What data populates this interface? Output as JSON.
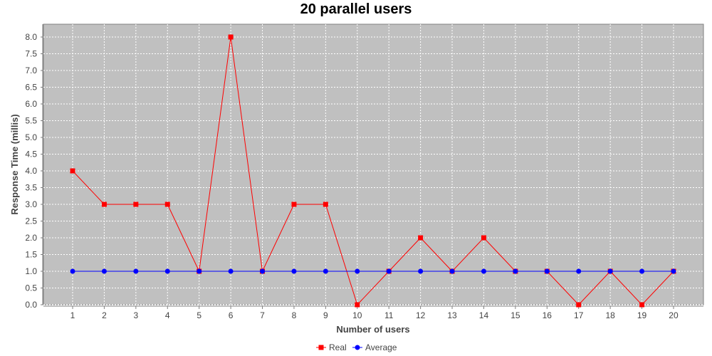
{
  "chart_data": {
    "type": "line",
    "title": "20 parallel users",
    "xlabel": "Number of users",
    "ylabel": "Response Time (millis)",
    "categories": [
      "1",
      "2",
      "3",
      "4",
      "5",
      "6",
      "7",
      "8",
      "9",
      "10",
      "11",
      "12",
      "13",
      "14",
      "15",
      "16",
      "17",
      "18",
      "19",
      "20"
    ],
    "ylim": [
      0,
      8.0
    ],
    "yticks": [
      "0.0",
      "0.5",
      "1.0",
      "1.5",
      "2.0",
      "2.5",
      "3.0",
      "3.5",
      "4.0",
      "4.5",
      "5.0",
      "5.5",
      "6.0",
      "6.5",
      "7.0",
      "7.5",
      "8.0"
    ],
    "grid": true,
    "legend_position": "bottom",
    "series": [
      {
        "name": "Real",
        "color": "#ff0000",
        "marker": "square",
        "values": [
          4,
          3,
          3,
          3,
          1,
          8,
          1,
          3,
          3,
          0,
          1,
          2,
          1,
          2,
          1,
          1,
          0,
          1,
          0,
          1
        ]
      },
      {
        "name": "Average",
        "color": "#0000ff",
        "marker": "circle",
        "values": [
          1,
          1,
          1,
          1,
          1,
          1,
          1,
          1,
          1,
          1,
          1,
          1,
          1,
          1,
          1,
          1,
          1,
          1,
          1,
          1
        ]
      }
    ],
    "plot_background": "#c0c0c0",
    "grid_color": "#ffffff"
  }
}
